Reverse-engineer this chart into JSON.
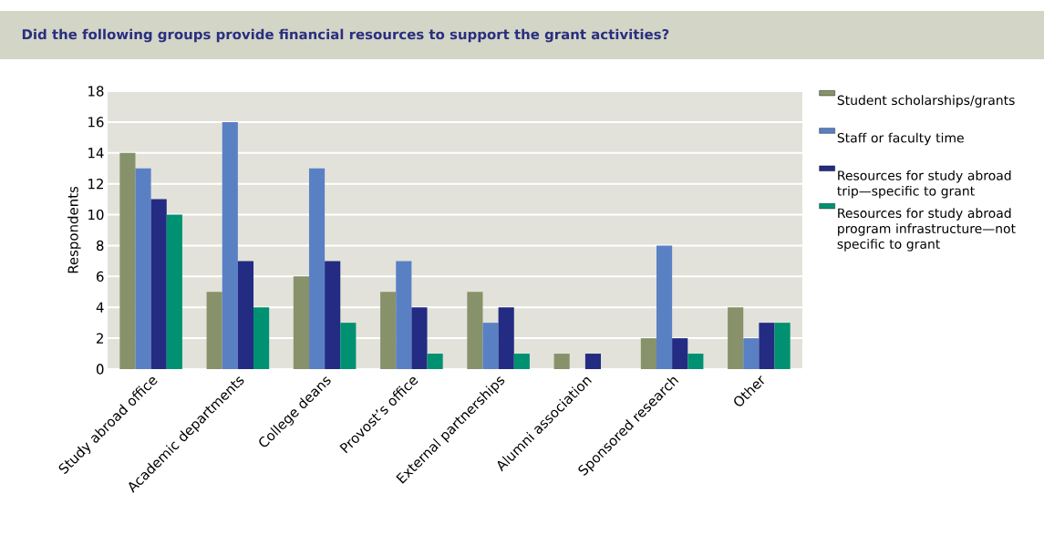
{
  "chart_data": {
    "type": "bar",
    "title": "Did the following groups provide financial resources to support the grant activities?",
    "ylabel": "Respondents",
    "categories": [
      "Study abroad office",
      "Academic departments",
      "College deans",
      "Provost’s office",
      "External partnerships",
      "Alumni association",
      "Sponsored research",
      "Other"
    ],
    "series": [
      {
        "name": "Student scholarships/grants",
        "color": "#87926a",
        "values": [
          14,
          5,
          6,
          5,
          5,
          1,
          2,
          4
        ]
      },
      {
        "name": "Staff or faculty time",
        "color": "#5a80c4",
        "values": [
          13,
          16,
          13,
          7,
          3,
          0,
          8,
          2
        ]
      },
      {
        "name": "Resources for study abroad trip—specific to grant",
        "color": "#232c82",
        "values": [
          11,
          7,
          7,
          4,
          4,
          1,
          2,
          3
        ]
      },
      {
        "name": "Resources for study abroad program infrastructure—not specific to grant",
        "color": "#009172",
        "values": [
          10,
          4,
          3,
          1,
          1,
          0,
          1,
          3
        ]
      }
    ],
    "ylim": [
      0,
      18
    ],
    "yticks": [
      0,
      2,
      4,
      6,
      8,
      10,
      12,
      14,
      16,
      18
    ],
    "grid": "y",
    "legend": "right"
  }
}
